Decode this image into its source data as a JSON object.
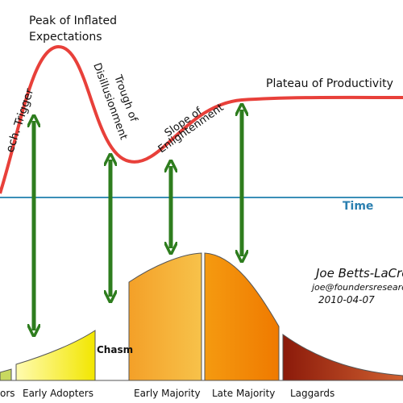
{
  "hype_cycle": {
    "peak": [
      "Peak of Inflated",
      "Expectations"
    ],
    "trigger": "ech. Trigger",
    "trough": [
      "Trough of",
      "Disillusionment"
    ],
    "slope": [
      "Slope of",
      "Enlightenment"
    ],
    "plateau": "Plateau of Productivity",
    "axis": "Time"
  },
  "adoption": {
    "segments": [
      "ors",
      "Early Adopters",
      "Early Majority",
      "Late Majority",
      "Laggards"
    ],
    "chasm": "Chasm"
  },
  "author": {
    "name": "Joe Betts-LaCro",
    "email": "joe@foundersresearch.c",
    "date": "2010-04-07"
  }
}
